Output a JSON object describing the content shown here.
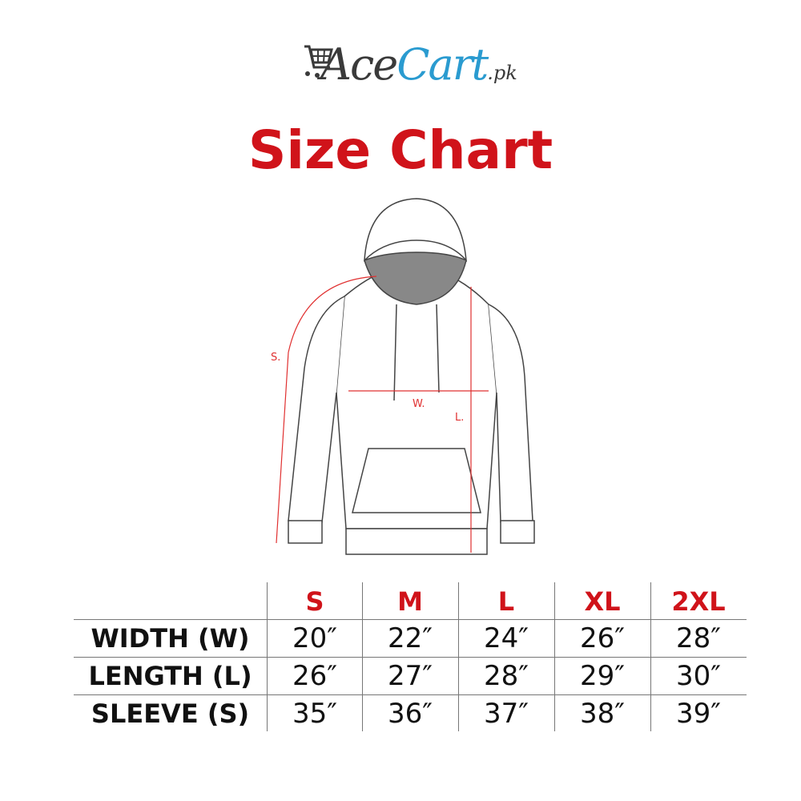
{
  "logo": {
    "part1": "Ace",
    "part2": "Cart",
    "part3": ".pk",
    "icon": "shopping-cart-icon"
  },
  "title": "Size Chart",
  "diagram": {
    "labels": {
      "sleeve": "S.",
      "width": "W.",
      "length": "L."
    }
  },
  "table": {
    "sizes": [
      "S",
      "M",
      "L",
      "XL",
      "2XL"
    ],
    "rows": [
      {
        "label": "WIDTH (W)",
        "values": [
          "20″",
          "22″",
          "24″",
          "26″",
          "28″"
        ]
      },
      {
        "label": "LENGTH (L)",
        "values": [
          "26″",
          "27″",
          "28″",
          "29″",
          "30″"
        ]
      },
      {
        "label": "SLEEVE (S)",
        "values": [
          "35″",
          "36″",
          "37″",
          "38″",
          "39″"
        ]
      }
    ]
  },
  "colors": {
    "title": "#d0131a",
    "brand_blue": "#2a9bd0",
    "brand_gray": "#3a3a3a",
    "measure": "#e03030"
  }
}
